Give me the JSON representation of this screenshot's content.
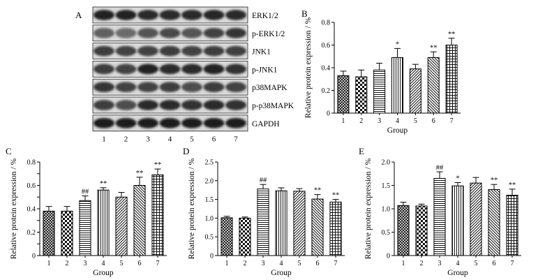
{
  "figure": {
    "panel_labels": [
      "A",
      "B",
      "C",
      "D",
      "E"
    ],
    "blot": {
      "rows": [
        "ERK1/2",
        "p-ERK1/2",
        "JNK1",
        "p-JNK1",
        "p38MAPK",
        "p-p38MAPK",
        "GAPDH"
      ],
      "lanes": [
        "1",
        "2",
        "3",
        "4",
        "5",
        "6",
        "7"
      ]
    }
  },
  "chart_data": [
    {
      "panel": "B",
      "type": "bar",
      "categories": [
        "1",
        "2",
        "3",
        "4",
        "5",
        "6",
        "7"
      ],
      "values": [
        0.33,
        0.32,
        0.38,
        0.49,
        0.39,
        0.49,
        0.6
      ],
      "errors": [
        0.04,
        0.06,
        0.06,
        0.08,
        0.04,
        0.05,
        0.06
      ],
      "annotations": [
        "",
        "",
        "",
        "*",
        "",
        "**",
        "**"
      ],
      "ylim": [
        0,
        0.8
      ],
      "yticks": [
        0,
        0.2,
        0.4,
        0.6,
        0.8
      ],
      "ytick_labels": [
        "0",
        "0.2",
        "0.4",
        "0.6",
        "0.8"
      ],
      "xlabel": "Group",
      "ylabel": "Relative protein expression / %",
      "title": ""
    },
    {
      "panel": "C",
      "type": "bar",
      "categories": [
        "1",
        "2",
        "3",
        "4",
        "5",
        "6",
        "7"
      ],
      "values": [
        0.38,
        0.38,
        0.47,
        0.56,
        0.5,
        0.6,
        0.69
      ],
      "errors": [
        0.04,
        0.04,
        0.04,
        0.02,
        0.04,
        0.07,
        0.05
      ],
      "annotations": [
        "",
        "",
        "##",
        "**",
        "",
        "**",
        "**"
      ],
      "ylim": [
        0,
        0.8
      ],
      "yticks": [
        0,
        0.1,
        0.2,
        0.3,
        0.4,
        0.5,
        0.6,
        0.7,
        0.8
      ],
      "ytick_labels": [
        "0",
        "",
        "0.2",
        "",
        "0.4",
        "",
        "0.6",
        "",
        "0.8"
      ],
      "xlabel": "Group",
      "ylabel": "Relative protein expression / %",
      "title": ""
    },
    {
      "panel": "D",
      "type": "bar",
      "categories": [
        "1",
        "2",
        "3",
        "4",
        "5",
        "6",
        "7"
      ],
      "values": [
        1.01,
        1.0,
        1.78,
        1.73,
        1.72,
        1.51,
        1.43
      ],
      "errors": [
        0.04,
        0.03,
        0.12,
        0.08,
        0.07,
        0.12,
        0.07
      ],
      "annotations": [
        "",
        "",
        "##",
        "",
        "",
        "**",
        "**"
      ],
      "ylim": [
        0,
        2.5
      ],
      "yticks": [
        0,
        0.5,
        1.0,
        1.5,
        2.0,
        2.5
      ],
      "ytick_labels": [
        "0",
        "0.5",
        "1.0",
        "1.5",
        "2.0",
        "2.5"
      ],
      "xlabel": "Group",
      "ylabel": "Relative protein expression / %",
      "title": ""
    },
    {
      "panel": "E",
      "type": "bar",
      "categories": [
        "1",
        "2",
        "3",
        "4",
        "5",
        "6",
        "7"
      ],
      "values": [
        1.07,
        1.06,
        1.65,
        1.49,
        1.55,
        1.41,
        1.29
      ],
      "errors": [
        0.07,
        0.04,
        0.14,
        0.07,
        0.12,
        0.11,
        0.13
      ],
      "annotations": [
        "",
        "",
        "##",
        "*",
        "",
        "**",
        "**"
      ],
      "ylim": [
        0,
        2.0
      ],
      "yticks": [
        0,
        0.5,
        1.0,
        1.5,
        2.0
      ],
      "ytick_labels": [
        "0",
        "0.5",
        "1.0",
        "1.5",
        "2.0"
      ],
      "xlabel": "Group",
      "ylabel": "Relative protein expression / %",
      "title": ""
    }
  ]
}
